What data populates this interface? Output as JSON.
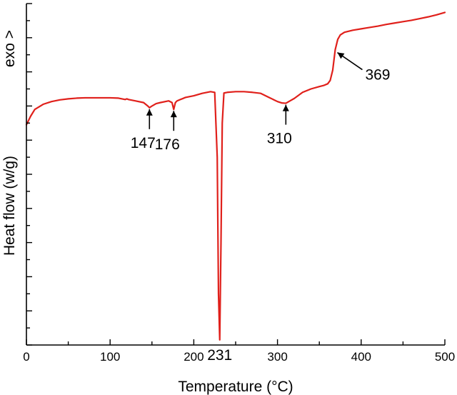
{
  "chart_data": {
    "type": "line",
    "xlabel": "Temperature (°C)",
    "ylabel": "Heat flow (w/g)",
    "y_direction_label": "exo >",
    "xlim": [
      0,
      500
    ],
    "ylim": [
      -10,
      0
    ],
    "x_ticks": [
      0,
      100,
      200,
      300,
      400,
      500
    ],
    "y_ticks_labeled": false,
    "grid": false,
    "series_color": "#e0201b",
    "series": [
      {
        "x": [
          0,
          5,
          10,
          20,
          30,
          40,
          50,
          60,
          70,
          80,
          90,
          100,
          110,
          118,
          120,
          122,
          130,
          140,
          145,
          147,
          150,
          155,
          160,
          170,
          174,
          176,
          178,
          180,
          190,
          200,
          210,
          220,
          225,
          228,
          229.5,
          231,
          232.5,
          234,
          236,
          240,
          250,
          260,
          270,
          280,
          290,
          300,
          305,
          310,
          315,
          320,
          330,
          340,
          350,
          355,
          360,
          363,
          366,
          369,
          372,
          375,
          380,
          390,
          400,
          410,
          420,
          430,
          440,
          450,
          460,
          470,
          480,
          490,
          500
        ],
        "y": [
          -3.55,
          -3.3,
          -3.1,
          -2.95,
          -2.87,
          -2.82,
          -2.79,
          -2.77,
          -2.76,
          -2.76,
          -2.76,
          -2.76,
          -2.77,
          -2.81,
          -2.79,
          -2.81,
          -2.85,
          -2.9,
          -3.0,
          -3.05,
          -3.0,
          -2.93,
          -2.9,
          -2.85,
          -2.9,
          -3.1,
          -2.9,
          -2.85,
          -2.75,
          -2.7,
          -2.63,
          -2.58,
          -2.6,
          -4.5,
          -8.5,
          -9.85,
          -7.0,
          -3.5,
          -2.62,
          -2.6,
          -2.58,
          -2.58,
          -2.6,
          -2.63,
          -2.75,
          -2.87,
          -2.91,
          -2.92,
          -2.85,
          -2.78,
          -2.6,
          -2.5,
          -2.43,
          -2.4,
          -2.35,
          -2.25,
          -1.95,
          -1.35,
          -1.05,
          -0.92,
          -0.84,
          -0.78,
          -0.74,
          -0.7,
          -0.66,
          -0.61,
          -0.57,
          -0.53,
          -0.49,
          -0.44,
          -0.39,
          -0.33,
          -0.26
        ]
      }
    ],
    "annotations": [
      {
        "label": "147",
        "x": 147,
        "y": -3.05
      },
      {
        "label": "176",
        "x": 176,
        "y": -3.1
      },
      {
        "label": "231",
        "x": 231,
        "y": -9.85
      },
      {
        "label": "310",
        "x": 310,
        "y": -2.92
      },
      {
        "label": "369",
        "x": 369,
        "y": -1.35
      }
    ]
  }
}
